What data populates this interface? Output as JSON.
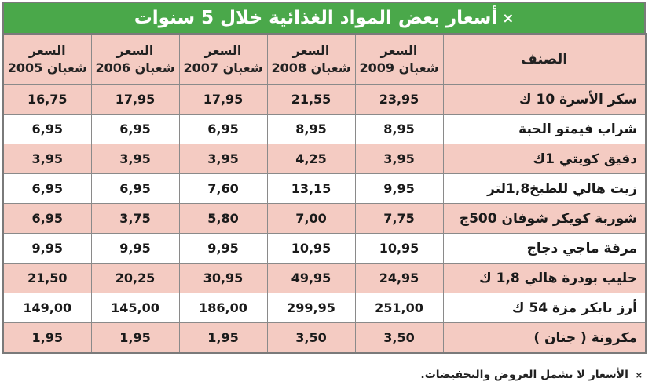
{
  "title": {
    "mark": "×",
    "text": "أسعار بعض المواد الغذائية خلال 5 سنوات"
  },
  "table": {
    "header_item": "الصنف",
    "price_label": "السعر",
    "years": [
      "شعبان 2009",
      "شعبان 2008",
      "شعبان 2007",
      "شعبان 2006",
      "شعبان 2005"
    ],
    "rows": [
      {
        "item": "سكر الأسرة 10 ك",
        "prices": [
          "23,95",
          "21,55",
          "17,95",
          "17,95",
          "16,75"
        ]
      },
      {
        "item": "شراب فيمتو الحبة",
        "prices": [
          "8,95",
          "8,95",
          "6,95",
          "6,95",
          "6,95"
        ]
      },
      {
        "item": "دقيق كويتي 1ك",
        "prices": [
          "3,95",
          "4,25",
          "3,95",
          "3,95",
          "3,95"
        ]
      },
      {
        "item": "زيت هالي للطبخ1,8لتر",
        "prices": [
          "9,95",
          "13,15",
          "7,60",
          "6,95",
          "6,95"
        ]
      },
      {
        "item": "شوربة كويكر شوفان 500ج",
        "prices": [
          "7,75",
          "7,00",
          "5,80",
          "3,75",
          "6,95"
        ]
      },
      {
        "item": "مرقة ماجي دجاج",
        "prices": [
          "10,95",
          "10,95",
          "9,95",
          "9,95",
          "9,95"
        ]
      },
      {
        "item": "حليب بودرة هالي 1,8 ك",
        "prices": [
          "24,95",
          "49,95",
          "30,95",
          "20,25",
          "21,50"
        ]
      },
      {
        "item": "أرز بابكر مزة 54 ك",
        "prices": [
          "251,00",
          "299,95",
          "186,00",
          "145,00",
          "149,00"
        ]
      },
      {
        "item": "مكرونة ( جنان )",
        "prices": [
          "3,50",
          "3,50",
          "1,95",
          "1,95",
          "1,95"
        ]
      }
    ]
  },
  "footnote": {
    "mark": "×",
    "text": "الأسعار لا تشمل العروض والتخفيضات."
  },
  "colors": {
    "title_bg": "#4aa84a",
    "pink_row": "#f4cbc2",
    "border": "#8a8a8a"
  }
}
